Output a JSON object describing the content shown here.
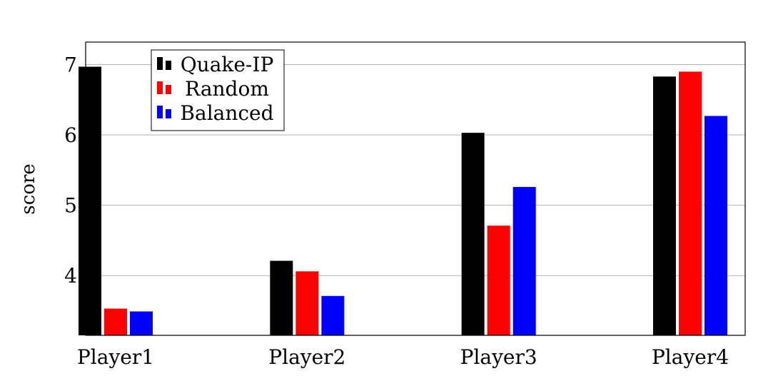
{
  "chart_data": {
    "type": "bar",
    "categories": [
      "Player1",
      "Player2",
      "Player3",
      "Player4"
    ],
    "series": [
      {
        "name": "Quake-IP",
        "color": "#000000",
        "values": [
          6.97,
          4.21,
          6.03,
          6.83
        ]
      },
      {
        "name": "Random",
        "color": "#ff0000",
        "values": [
          3.53,
          4.06,
          4.71,
          6.9
        ]
      },
      {
        "name": "Balanced",
        "color": "#0000ff",
        "values": [
          3.49,
          3.71,
          5.26,
          6.27
        ]
      }
    ],
    "ylabel": "score",
    "xlabel": "",
    "ylim": [
      3.15,
      7.32
    ],
    "yticks": [
      4,
      5,
      6,
      7
    ],
    "grid": "horizontal",
    "legend_position": "top-left"
  }
}
